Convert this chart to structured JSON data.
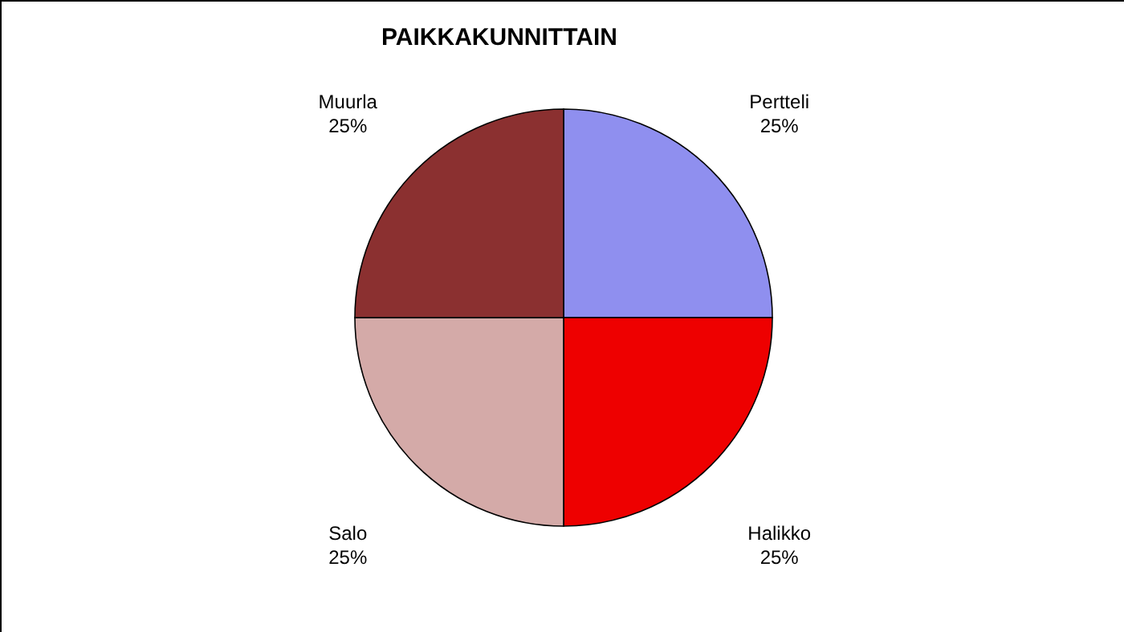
{
  "chart_data": {
    "type": "pie",
    "title": "PAIKKAKUNNITTAIN",
    "categories": [
      "Pertteli",
      "Halikko",
      "Salo",
      "Muurla"
    ],
    "values": [
      25,
      25,
      25,
      25
    ],
    "value_labels": [
      "25%",
      "25%",
      "25%",
      "25%"
    ],
    "colors": [
      "#8f8fef",
      "#ee0000",
      "#d4aaa8",
      "#8b3030"
    ],
    "legend": false
  }
}
